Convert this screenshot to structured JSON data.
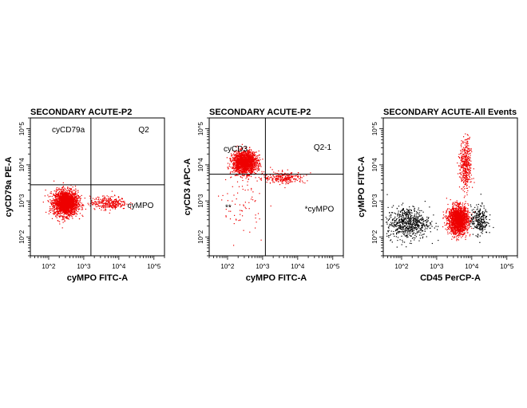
{
  "chart_data": [
    {
      "type": "scatter",
      "title": "SECONDARY ACUTE-P2",
      "xlabel": "cyMPO FITC-A",
      "ylabel": "cyCD79a PE-A",
      "x_scale": "log",
      "y_scale": "log",
      "xlim": [
        30,
        200000
      ],
      "ylim": [
        30,
        200000
      ],
      "x_ticks": [
        "10^2",
        "10^3",
        "10^4",
        "10^5"
      ],
      "y_ticks": [
        "10^2",
        "10^3",
        "10^4",
        "10^5"
      ],
      "gate": {
        "x": 1600,
        "y": 2800
      },
      "labels": {
        "ul": "cyCD79a",
        "ur": "Q2",
        "lr": "cyMPO"
      },
      "point_color": "#ee0000",
      "populations": [
        {
          "x": 300,
          "y": 900,
          "sx": 0.17,
          "sy": 0.17,
          "n": 2200,
          "color": "#ee0000"
        },
        {
          "x": 5000,
          "y": 900,
          "sx": 0.26,
          "sy": 0.09,
          "n": 320,
          "color": "#ee0000"
        }
      ]
    },
    {
      "type": "scatter",
      "title": "SECONDARY ACUTE-P2",
      "xlabel": "cyMPO FITC-A",
      "ylabel": "cyCD3 APC-A",
      "x_scale": "log",
      "y_scale": "log",
      "xlim": [
        30,
        200000
      ],
      "ylim": [
        30,
        200000
      ],
      "x_ticks": [
        "10^2",
        "10^3",
        "10^4",
        "10^5"
      ],
      "y_ticks": [
        "10^2",
        "10^3",
        "10^4",
        "10^5"
      ],
      "gate": {
        "x": 1200,
        "y": 5500
      },
      "labels": {
        "ul": "cyCD3",
        "ur": "Q2-1",
        "ll": "**",
        "lr": "*cyMPO"
      },
      "point_color": "#ee0000",
      "populations": [
        {
          "x": 300,
          "y": 12000,
          "sx": 0.17,
          "sy": 0.15,
          "n": 1800,
          "color": "#ee0000"
        },
        {
          "x": 4000,
          "y": 4500,
          "sx": 0.3,
          "sy": 0.08,
          "n": 260,
          "color": "#ee0000"
        },
        {
          "x": 250,
          "y": 800,
          "sx": 0.3,
          "sy": 0.4,
          "n": 70,
          "color": "#ee0000"
        }
      ]
    },
    {
      "type": "scatter",
      "title": "SECONDARY ACUTE-All Events",
      "xlabel": "CD45 PerCP-A",
      "ylabel": "cyMPO FITC-A",
      "x_scale": "log",
      "y_scale": "log",
      "xlim": [
        30,
        200000
      ],
      "ylim": [
        30,
        200000
      ],
      "x_ticks": [
        "10^2",
        "10^3",
        "10^4",
        "10^5"
      ],
      "y_ticks": [
        "10^2",
        "10^3",
        "10^4",
        "10^5"
      ],
      "point_color": "#ee0000",
      "background_color": "#000000",
      "populations": [
        {
          "x": 4000,
          "y": 300,
          "sx": 0.14,
          "sy": 0.19,
          "n": 1700,
          "color": "#ee0000"
        },
        {
          "x": 6500,
          "y": 10000,
          "sx": 0.08,
          "sy": 0.35,
          "n": 420,
          "color": "#ee0000"
        },
        {
          "x": 150,
          "y": 250,
          "sx": 0.3,
          "sy": 0.22,
          "n": 650,
          "color": "#000000"
        },
        {
          "x": 16000,
          "y": 300,
          "sx": 0.12,
          "sy": 0.2,
          "n": 260,
          "color": "#000000"
        }
      ]
    }
  ]
}
